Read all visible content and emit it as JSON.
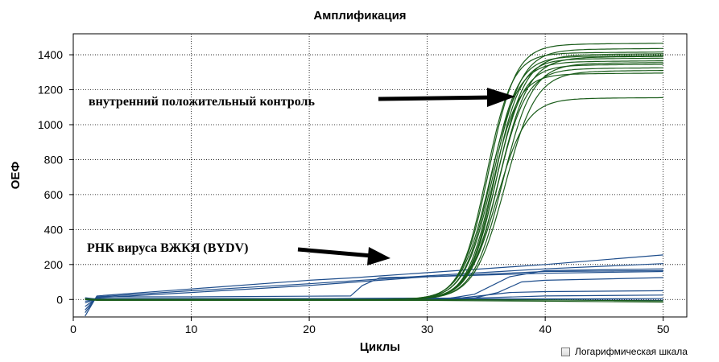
{
  "chart_data": {
    "type": "line",
    "title": "Амплификация",
    "xlabel": "Циклы",
    "ylabel": "ОЕФ",
    "xlim": [
      0,
      52
    ],
    "ylim": [
      -100,
      1520
    ],
    "xticks": [
      0,
      10,
      20,
      30,
      40,
      50
    ],
    "yticks": [
      0,
      200,
      400,
      600,
      800,
      1000,
      1200,
      1400
    ],
    "grid": true,
    "grid_style": "dotted",
    "annotations": [
      {
        "text": "внутренний положительный контроль",
        "points_to": "green-curves"
      },
      {
        "text": "РНК вируса ВЖКЯ (BYDV)",
        "points_to": "blue-curves"
      }
    ],
    "sigmoid_series": {
      "color": "#1a5c1a",
      "x_start": 1,
      "x_end": 50,
      "curves": [
        {
          "plateau": 1460,
          "midpoint": 35.2,
          "slope": 1.15
        },
        {
          "plateau": 1430,
          "midpoint": 35.6,
          "slope": 1.2
        },
        {
          "plateau": 1410,
          "midpoint": 35.0,
          "slope": 1.1
        },
        {
          "plateau": 1400,
          "midpoint": 35.9,
          "slope": 1.2
        },
        {
          "plateau": 1390,
          "midpoint": 35.4,
          "slope": 1.15
        },
        {
          "plateau": 1385,
          "midpoint": 36.1,
          "slope": 1.25
        },
        {
          "plateau": 1375,
          "midpoint": 35.7,
          "slope": 1.1
        },
        {
          "plateau": 1360,
          "midpoint": 35.3,
          "slope": 1.2
        },
        {
          "plateau": 1350,
          "midpoint": 36.4,
          "slope": 1.25
        },
        {
          "plateau": 1340,
          "midpoint": 35.8,
          "slope": 1.15
        },
        {
          "plateau": 1320,
          "midpoint": 36.0,
          "slope": 1.2
        },
        {
          "plateau": 1305,
          "midpoint": 36.6,
          "slope": 1.3
        },
        {
          "plateau": 1290,
          "midpoint": 35.5,
          "slope": 1.1
        },
        {
          "plateau": 1150,
          "midpoint": 35.9,
          "slope": 1.25
        }
      ]
    },
    "line_series": [
      {
        "color": "#1f4e8c",
        "x": [
          1,
          2,
          10,
          20,
          24,
          25,
          40,
          50
        ],
        "y": [
          -95,
          20,
          60,
          110,
          125,
          130,
          200,
          255
        ]
      },
      {
        "color": "#1f4e8c",
        "x": [
          1,
          2,
          10,
          20,
          30,
          40,
          50
        ],
        "y": [
          -60,
          15,
          50,
          90,
          135,
          175,
          205
        ]
      },
      {
        "color": "#1f4e8c",
        "x": [
          1,
          2,
          10,
          20,
          30,
          40,
          50
        ],
        "y": [
          -40,
          10,
          40,
          80,
          130,
          150,
          160
        ]
      },
      {
        "color": "#1f4e8c",
        "x": [
          1,
          2,
          10,
          23.5,
          24.5,
          26,
          30,
          40,
          50
        ],
        "y": [
          -75,
          15,
          15,
          20,
          80,
          125,
          130,
          160,
          165
        ]
      },
      {
        "color": "#1f4e8c",
        "x": [
          1,
          2,
          10,
          20,
          32,
          34,
          37,
          40,
          50
        ],
        "y": [
          0,
          5,
          5,
          5,
          8,
          30,
          130,
          165,
          175
        ]
      },
      {
        "color": "#1f4e8c",
        "x": [
          1,
          2,
          10,
          20,
          34,
          36,
          38,
          40,
          50
        ],
        "y": [
          -20,
          5,
          5,
          5,
          8,
          40,
          100,
          110,
          125
        ]
      },
      {
        "color": "#1f4e8c",
        "x": [
          1,
          2,
          10,
          30,
          33,
          37,
          40,
          50
        ],
        "y": [
          0,
          3,
          3,
          5,
          10,
          40,
          45,
          50
        ]
      },
      {
        "color": "#1f4e8c",
        "x": [
          1,
          2,
          10,
          30,
          35,
          40,
          50
        ],
        "y": [
          5,
          3,
          3,
          3,
          10,
          20,
          25
        ]
      },
      {
        "color": "#1f4e8c",
        "x": [
          1,
          2,
          10,
          30,
          40,
          50
        ],
        "y": [
          10,
          2,
          2,
          2,
          3,
          5
        ]
      },
      {
        "color": "#1f4e8c",
        "x": [
          1,
          2,
          10,
          30,
          40,
          50
        ],
        "y": [
          -10,
          0,
          0,
          0,
          -2,
          -5
        ]
      },
      {
        "color": "#1a5c1a",
        "x": [
          1,
          2,
          10,
          30,
          40,
          50
        ],
        "y": [
          0,
          -5,
          -5,
          -5,
          -10,
          -15
        ]
      },
      {
        "color": "#1a5c1a",
        "x": [
          1,
          2,
          10,
          30,
          40,
          50
        ],
        "y": [
          5,
          0,
          0,
          0,
          -3,
          -8
        ]
      }
    ]
  },
  "log_scale_label": "Логарифмическая шкала",
  "log_scale_checked": false
}
